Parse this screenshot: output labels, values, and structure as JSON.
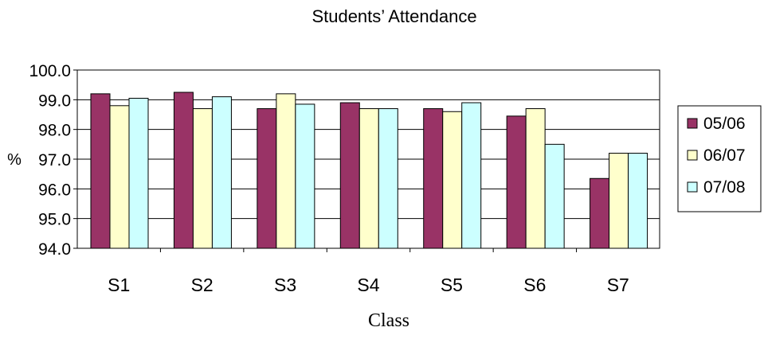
{
  "chart_data": {
    "type": "bar",
    "title": "Students’ Attendance",
    "xlabel": "Class",
    "ylabel": "%",
    "categories": [
      "S1",
      "S2",
      "S3",
      "S4",
      "S5",
      "S6",
      "S7"
    ],
    "series": [
      {
        "name": "05/06",
        "color": "#993366",
        "values": [
          99.2,
          99.25,
          98.7,
          98.9,
          98.7,
          98.45,
          96.35
        ]
      },
      {
        "name": "06/07",
        "color": "#FFFFCC",
        "values": [
          98.8,
          98.7,
          99.2,
          98.7,
          98.6,
          98.7,
          97.2
        ]
      },
      {
        "name": "07/08",
        "color": "#CCFFFF",
        "values": [
          99.05,
          99.1,
          98.85,
          98.7,
          98.9,
          97.5,
          97.2
        ]
      }
    ],
    "ylim": [
      94.0,
      100.0
    ],
    "yticks": [
      94.0,
      95.0,
      96.0,
      97.0,
      98.0,
      99.0,
      100.0
    ],
    "ytick_labels": [
      "94.0",
      "95.0",
      "96.0",
      "97.0",
      "98.0",
      "99.0",
      "100.0"
    ],
    "grid": true,
    "legend_position": "right"
  }
}
